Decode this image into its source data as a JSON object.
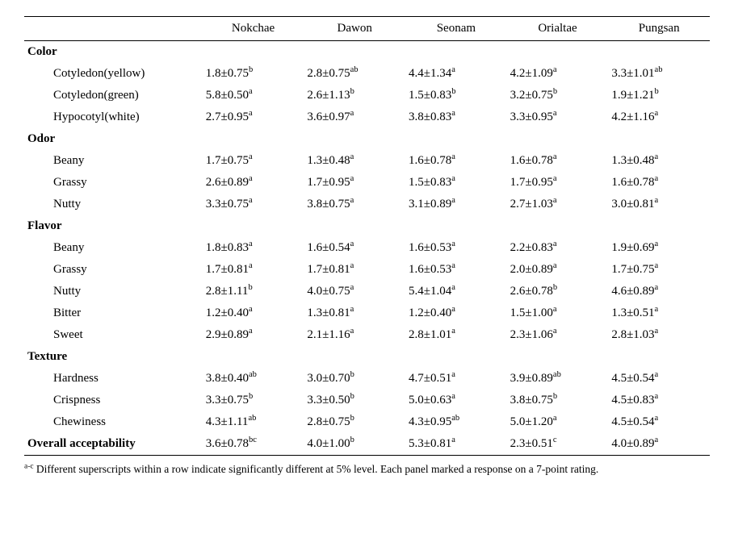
{
  "columns": [
    "Nokchae",
    "Dawon",
    "Seonam",
    "Orialtae",
    "Pungsan"
  ],
  "groups": [
    {
      "name": "Color",
      "rows": [
        {
          "label": "Cotyledon(yellow)",
          "cells": [
            {
              "m": "1.8",
              "s": "0.75",
              "sup": "b"
            },
            {
              "m": "2.8",
              "s": "0.75",
              "sup": "ab"
            },
            {
              "m": "4.4",
              "s": "1.34",
              "sup": "a"
            },
            {
              "m": "4.2",
              "s": "1.09",
              "sup": "a"
            },
            {
              "m": "3.3",
              "s": "1.01",
              "sup": "ab"
            }
          ]
        },
        {
          "label": "Cotyledon(green)",
          "cells": [
            {
              "m": "5.8",
              "s": "0.50",
              "sup": "a"
            },
            {
              "m": "2.6",
              "s": "1.13",
              "sup": "b"
            },
            {
              "m": "1.5",
              "s": "0.83",
              "sup": "b"
            },
            {
              "m": "3.2",
              "s": "0.75",
              "sup": "b"
            },
            {
              "m": "1.9",
              "s": "1.21",
              "sup": "b"
            }
          ]
        },
        {
          "label": "Hypocotyl(white)",
          "cells": [
            {
              "m": "2.7",
              "s": "0.95",
              "sup": "a"
            },
            {
              "m": "3.6",
              "s": "0.97",
              "sup": "a"
            },
            {
              "m": "3.8",
              "s": "0.83",
              "sup": "a"
            },
            {
              "m": "3.3",
              "s": "0.95",
              "sup": "a"
            },
            {
              "m": "4.2",
              "s": "1.16",
              "sup": "a"
            }
          ]
        }
      ]
    },
    {
      "name": "Odor",
      "rows": [
        {
          "label": "Beany",
          "cells": [
            {
              "m": "1.7",
              "s": "0.75",
              "sup": "a"
            },
            {
              "m": "1.3",
              "s": "0.48",
              "sup": "a"
            },
            {
              "m": "1.6",
              "s": "0.78",
              "sup": "a"
            },
            {
              "m": "1.6",
              "s": "0.78",
              "sup": "a"
            },
            {
              "m": "1.3",
              "s": "0.48",
              "sup": "a"
            }
          ]
        },
        {
          "label": "Grassy",
          "cells": [
            {
              "m": "2.6",
              "s": "0.89",
              "sup": "a"
            },
            {
              "m": "1.7",
              "s": "0.95",
              "sup": "a"
            },
            {
              "m": "1.5",
              "s": "0.83",
              "sup": "a"
            },
            {
              "m": "1.7",
              "s": "0.95",
              "sup": "a"
            },
            {
              "m": "1.6",
              "s": "0.78",
              "sup": "a"
            }
          ]
        },
        {
          "label": "Nutty",
          "cells": [
            {
              "m": "3.3",
              "s": "0.75",
              "sup": "a"
            },
            {
              "m": "3.8",
              "s": "0.75",
              "sup": "a"
            },
            {
              "m": "3.1",
              "s": "0.89",
              "sup": "a"
            },
            {
              "m": "2.7",
              "s": "1.03",
              "sup": "a"
            },
            {
              "m": "3.0",
              "s": "0.81",
              "sup": "a"
            }
          ]
        }
      ]
    },
    {
      "name": "Flavor",
      "rows": [
        {
          "label": "Beany",
          "cells": [
            {
              "m": "1.8",
              "s": "0.83",
              "sup": "a"
            },
            {
              "m": "1.6",
              "s": "0.54",
              "sup": "a"
            },
            {
              "m": "1.6",
              "s": "0.53",
              "sup": "a"
            },
            {
              "m": "2.2",
              "s": "0.83",
              "sup": "a"
            },
            {
              "m": "1.9",
              "s": "0.69",
              "sup": "a"
            }
          ]
        },
        {
          "label": "Grassy",
          "cells": [
            {
              "m": "1.7",
              "s": "0.81",
              "sup": "a"
            },
            {
              "m": "1.7",
              "s": "0.81",
              "sup": "a"
            },
            {
              "m": "1.6",
              "s": "0.53",
              "sup": "a"
            },
            {
              "m": "2.0",
              "s": "0.89",
              "sup": "a"
            },
            {
              "m": "1.7",
              "s": "0.75",
              "sup": "a"
            }
          ]
        },
        {
          "label": "Nutty",
          "cells": [
            {
              "m": "2.8",
              "s": "1.11",
              "sup": "b"
            },
            {
              "m": "4.0",
              "s": "0.75",
              "sup": "a"
            },
            {
              "m": "5.4",
              "s": "1.04",
              "sup": "a"
            },
            {
              "m": "2.6",
              "s": "0.78",
              "sup": "b"
            },
            {
              "m": "4.6",
              "s": "0.89",
              "sup": "a"
            }
          ]
        },
        {
          "label": "Bitter",
          "cells": [
            {
              "m": "1.2",
              "s": "0.40",
              "sup": "a"
            },
            {
              "m": "1.3",
              "s": "0.81",
              "sup": "a"
            },
            {
              "m": "1.2",
              "s": "0.40",
              "sup": "a"
            },
            {
              "m": "1.5",
              "s": "1.00",
              "sup": "a"
            },
            {
              "m": "1.3",
              "s": "0.51",
              "sup": "a"
            }
          ]
        },
        {
          "label": "Sweet",
          "cells": [
            {
              "m": "2.9",
              "s": "0.89",
              "sup": "a"
            },
            {
              "m": "2.1",
              "s": "1.16",
              "sup": "a"
            },
            {
              "m": "2.8",
              "s": "1.01",
              "sup": "a"
            },
            {
              "m": "2.3",
              "s": "1.06",
              "sup": "a"
            },
            {
              "m": "2.8",
              "s": "1.03",
              "sup": "a"
            }
          ]
        }
      ]
    },
    {
      "name": "Texture",
      "rows": [
        {
          "label": "Hardness",
          "cells": [
            {
              "m": "3.8",
              "s": "0.40",
              "sup": "ab"
            },
            {
              "m": "3.0",
              "s": "0.70",
              "sup": "b"
            },
            {
              "m": "4.7",
              "s": "0.51",
              "sup": "a"
            },
            {
              "m": "3.9",
              "s": "0.89",
              "sup": "ab"
            },
            {
              "m": "4.5",
              "s": "0.54",
              "sup": "a"
            }
          ]
        },
        {
          "label": "Crispness",
          "cells": [
            {
              "m": "3.3",
              "s": "0.75",
              "sup": "b"
            },
            {
              "m": "3.3",
              "s": "0.50",
              "sup": "b"
            },
            {
              "m": "5.0",
              "s": "0.63",
              "sup": "a"
            },
            {
              "m": "3.8",
              "s": "0.75",
              "sup": "b"
            },
            {
              "m": "4.5",
              "s": "0.83",
              "sup": "a"
            }
          ]
        },
        {
          "label": "Chewiness",
          "cells": [
            {
              "m": "4.3",
              "s": "1.11",
              "sup": "ab"
            },
            {
              "m": "2.8",
              "s": "0.75",
              "sup": "b"
            },
            {
              "m": "4.3",
              "s": "0.95",
              "sup": "ab"
            },
            {
              "m": "5.0",
              "s": "1.20",
              "sup": "a"
            },
            {
              "m": "4.5",
              "s": "0.54",
              "sup": "a"
            }
          ]
        }
      ]
    }
  ],
  "overall": {
    "label": "Overall acceptability",
    "cells": [
      {
        "m": "3.6",
        "s": "0.78",
        "sup": "bc"
      },
      {
        "m": "4.0",
        "s": "1.00",
        "sup": "b"
      },
      {
        "m": "5.3",
        "s": "0.81",
        "sup": "a"
      },
      {
        "m": "2.3",
        "s": "0.51",
        "sup": "c"
      },
      {
        "m": "4.0",
        "s": "0.89",
        "sup": "a"
      }
    ]
  },
  "footnote_sup": "a-c",
  "footnote_text": "Different superscripts within a row indicate significantly different at 5% level. Each panel marked a response on a 7-point rating."
}
